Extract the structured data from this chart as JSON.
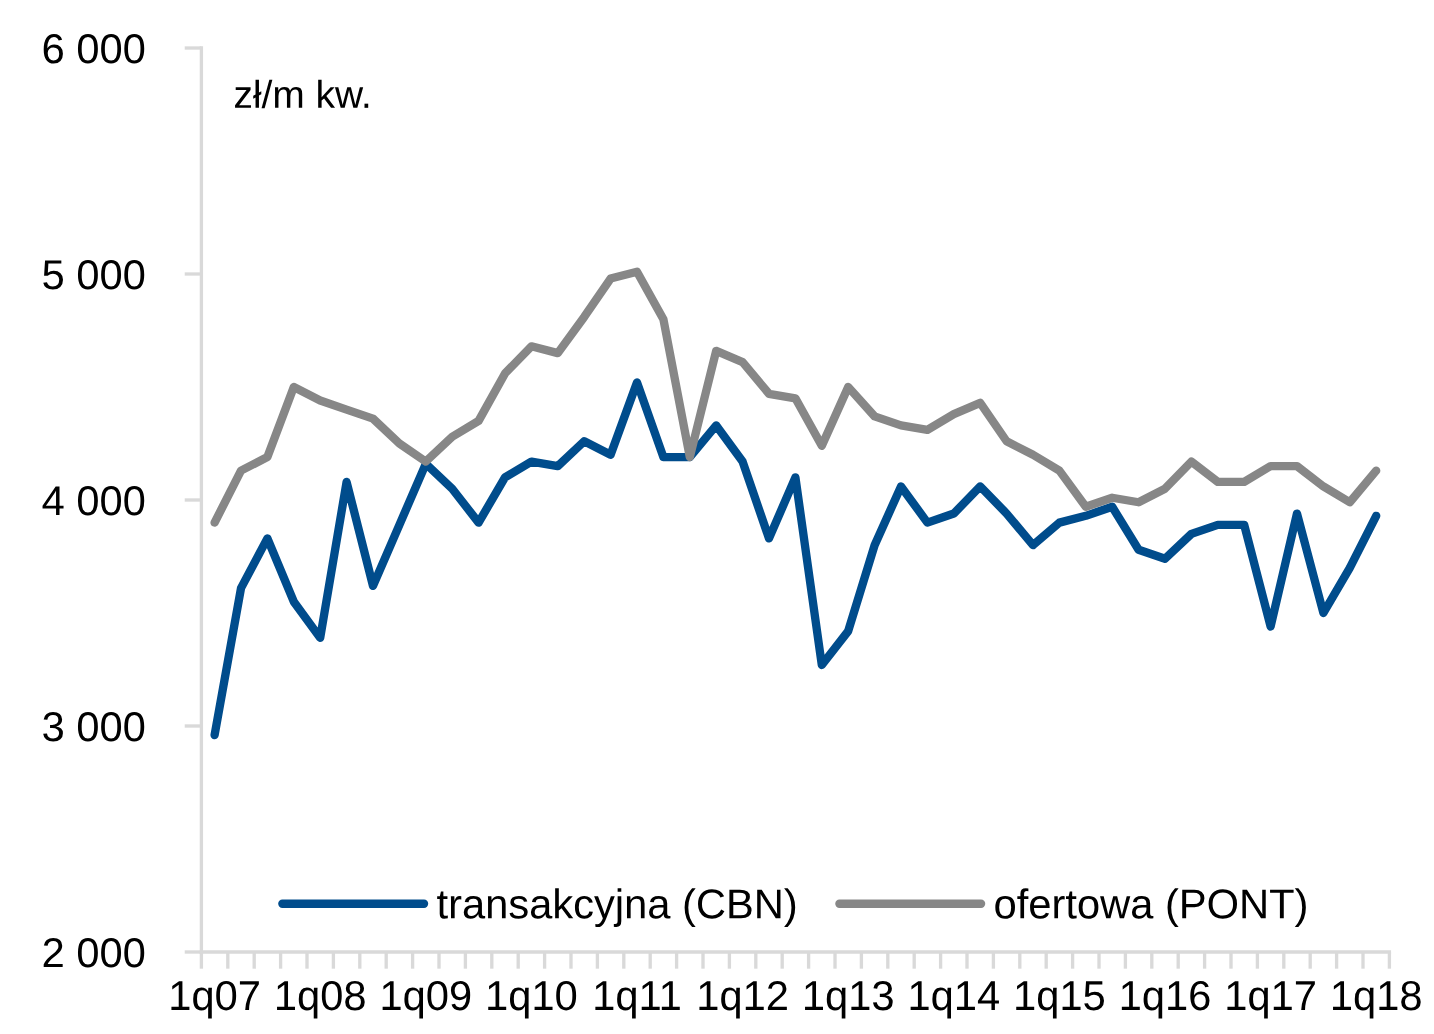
{
  "chart_data": {
    "type": "line",
    "ylabel": "zł/m kw.",
    "categories": [
      "1q07",
      null,
      null,
      null,
      "1q08",
      null,
      null,
      null,
      "1q09",
      null,
      null,
      null,
      "1q10",
      null,
      null,
      null,
      "1q11",
      null,
      null,
      null,
      "1q12",
      null,
      null,
      null,
      "1q13",
      null,
      null,
      null,
      "1q14",
      null,
      null,
      null,
      "1q15",
      null,
      null,
      null,
      "1q16",
      null,
      null,
      null,
      "1q17",
      null,
      null,
      null,
      "1q18"
    ],
    "series": [
      {
        "name": "transakcyjna (CBN)",
        "color": "#004c8c",
        "values": [
          2960,
          3610,
          3830,
          3550,
          3390,
          4080,
          3620,
          3890,
          4160,
          4050,
          3900,
          4100,
          4170,
          4150,
          4260,
          4200,
          4520,
          4190,
          4190,
          4330,
          4170,
          3830,
          4100,
          3270,
          3420,
          3800,
          4060,
          3900,
          3940,
          4060,
          3940,
          3800,
          3900,
          3930,
          3970,
          3780,
          3740,
          3850,
          3890,
          3890,
          3440,
          3940,
          3500,
          3700,
          3930
        ]
      },
      {
        "name": "ofertowa (PONT)",
        "color": "#878787",
        "values": [
          3900,
          4130,
          4190,
          4500,
          4440,
          4400,
          4360,
          4250,
          4170,
          4280,
          4350,
          4560,
          4680,
          4650,
          4810,
          4980,
          5010,
          4800,
          4190,
          4660,
          4610,
          4470,
          4450,
          4240,
          4500,
          4370,
          4330,
          4310,
          4380,
          4430,
          4260,
          4200,
          4130,
          3970,
          4010,
          3990,
          4050,
          4170,
          4080,
          4080,
          4150,
          4150,
          4060,
          3990,
          4130
        ]
      }
    ],
    "ylim": [
      2000,
      6000
    ],
    "yticks": [
      {
        "value": 2000,
        "label": "2 000"
      },
      {
        "value": 3000,
        "label": "3 000"
      },
      {
        "value": 4000,
        "label": "4 000"
      },
      {
        "value": 5000,
        "label": "5 000"
      },
      {
        "value": 6000,
        "label": "6 000"
      }
    ],
    "grid": false,
    "legend": "bottom",
    "line_style": "solid"
  }
}
